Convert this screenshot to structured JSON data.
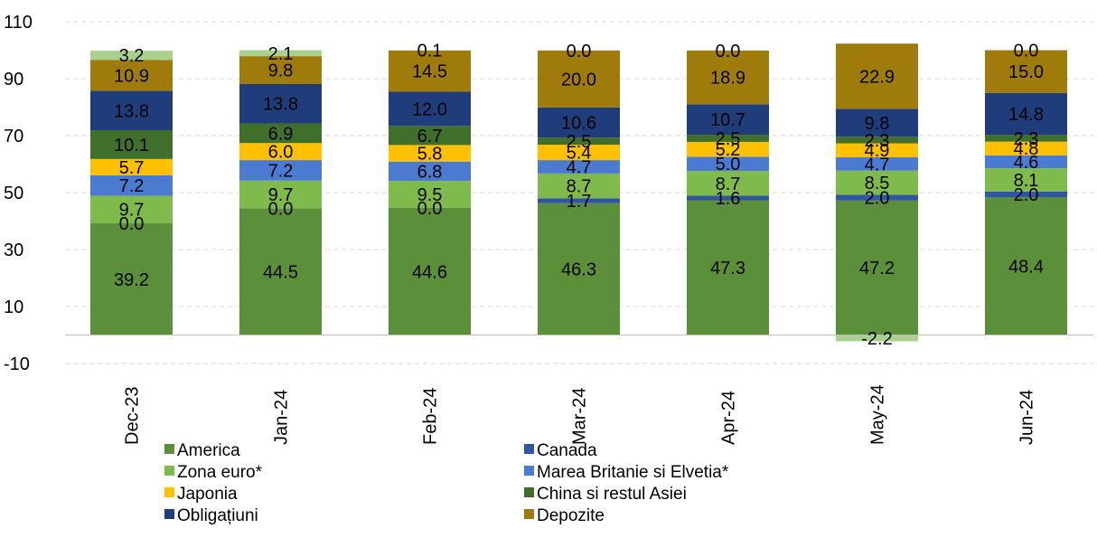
{
  "chart_data": {
    "type": "bar",
    "stacked": true,
    "title": "",
    "xlabel": "",
    "ylabel": "",
    "categories": [
      "Dec-23",
      "Jan-24",
      "Feb-24",
      "Mar-24",
      "Apr-24",
      "May-24",
      "Jun-24"
    ],
    "yticks": [
      -10,
      10,
      30,
      50,
      70,
      90,
      110
    ],
    "ylim": [
      -14,
      112
    ],
    "grid": true,
    "legend_position": "bottom",
    "series": [
      {
        "name": "America",
        "color": "#5b8f3a",
        "values": [
          39.2,
          44.5,
          44.6,
          46.3,
          47.3,
          47.2,
          48.4
        ],
        "labels": [
          "39.2",
          "44.5",
          "44.6",
          "46.3",
          "47.3",
          "47.2",
          "48.4"
        ]
      },
      {
        "name": "Canada",
        "color": "#2f56a0",
        "values": [
          0.0,
          0.0,
          0.0,
          1.7,
          1.6,
          2.0,
          2.0
        ],
        "labels": [
          "0.0",
          "0.0",
          "0.0",
          "1.7",
          "1.6",
          "2.0",
          "2.0"
        ]
      },
      {
        "name": "Zona euro*",
        "color": "#7fba4c",
        "values": [
          9.7,
          9.7,
          9.5,
          8.7,
          8.7,
          8.5,
          8.1
        ],
        "labels": [
          "9.7",
          "9.7",
          "9.5",
          "8.7",
          "8.7",
          "8.5",
          "8.1"
        ]
      },
      {
        "name": "Marea Britanie si Elvetia*",
        "color": "#4a7bd0",
        "values": [
          7.2,
          7.2,
          6.8,
          4.7,
          5.0,
          4.7,
          4.6
        ],
        "labels": [
          "7.2",
          "7.2",
          "6.8",
          "4.7",
          "5.0",
          "4.7",
          "4.6"
        ]
      },
      {
        "name": "Japonia",
        "color": "#ffc000",
        "values": [
          5.7,
          6.0,
          5.8,
          5.4,
          5.2,
          4.9,
          4.8
        ],
        "labels": [
          "5.7",
          "6.0",
          "5.8",
          "5.4",
          "5.2",
          "4.9",
          "4.8"
        ]
      },
      {
        "name": "China si restul Asiei",
        "color": "#3f6f2a",
        "values": [
          10.1,
          6.9,
          6.7,
          2.5,
          2.5,
          2.3,
          2.3
        ],
        "labels": [
          "10.1",
          "6.9",
          "6.7",
          "2.5",
          "2.5",
          "2.3",
          "2.3"
        ]
      },
      {
        "name": "Obligațiuni",
        "color": "#1f3d7a",
        "values": [
          13.8,
          13.8,
          12.0,
          10.6,
          10.7,
          9.8,
          14.8
        ],
        "labels": [
          "13.8",
          "13.8",
          "12.0",
          "10.6",
          "10.7",
          "9.8",
          "14.8"
        ]
      },
      {
        "name": "Depozite",
        "color": "#9e7b0a",
        "values": [
          10.9,
          9.8,
          14.5,
          20.0,
          18.9,
          22.9,
          15.0
        ],
        "labels": [
          "10.9",
          "9.8",
          "14.5",
          "20.0",
          "18.9",
          "22.9",
          "15.0"
        ]
      },
      {
        "name": "",
        "color": "#a9d18e",
        "values": [
          3.2,
          2.1,
          0.1,
          0.0,
          0.0,
          -2.2,
          0.0
        ],
        "labels": [
          "3.2",
          "2.1",
          "0.1",
          "0.0",
          "0.0",
          "-2.2",
          "0.0"
        ]
      }
    ],
    "legend": [
      {
        "name": "America",
        "color": "#5b8f3a"
      },
      {
        "name": "Canada",
        "color": "#2f56a0"
      },
      {
        "name": "Zona euro*",
        "color": "#7fba4c"
      },
      {
        "name": "Marea Britanie si Elvetia*",
        "color": "#4a7bd0"
      },
      {
        "name": "Japonia",
        "color": "#ffc000"
      },
      {
        "name": "China si restul Asiei",
        "color": "#3f6f2a"
      },
      {
        "name": "Obligațiuni",
        "color": "#1f3d7a"
      },
      {
        "name": "Depozite",
        "color": "#9e7b0a"
      }
    ]
  }
}
